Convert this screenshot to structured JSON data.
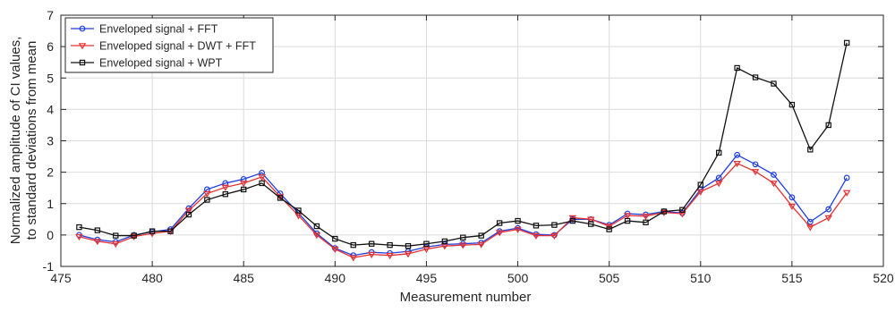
{
  "chart_data": {
    "type": "line",
    "title": "",
    "xlabel": "Measurement number",
    "ylabel_lines": [
      "Normalized amplitude of CI values,",
      "to standard deviations from mean"
    ],
    "xlim": [
      475,
      520
    ],
    "ylim": [
      -1,
      7
    ],
    "xticks": [
      475,
      480,
      485,
      490,
      495,
      500,
      505,
      510,
      515,
      520
    ],
    "yticks": [
      -1,
      0,
      1,
      2,
      3,
      4,
      5,
      6,
      7
    ],
    "grid": true,
    "legend_position": "top-left",
    "x": [
      476,
      477,
      478,
      479,
      480,
      481,
      482,
      483,
      484,
      485,
      486,
      487,
      488,
      489,
      490,
      491,
      492,
      493,
      494,
      495,
      496,
      497,
      498,
      499,
      500,
      501,
      502,
      503,
      504,
      505,
      506,
      507,
      508,
      509,
      510,
      511,
      512,
      513,
      514,
      515,
      516,
      517,
      518
    ],
    "series": [
      {
        "name": "Enveloped signal + FFT",
        "color": "#1f3fe0",
        "marker": "circle",
        "values": [
          0.0,
          -0.15,
          -0.22,
          0.0,
          0.1,
          0.18,
          0.85,
          1.45,
          1.65,
          1.78,
          1.98,
          1.32,
          0.7,
          0.05,
          -0.42,
          -0.65,
          -0.55,
          -0.58,
          -0.52,
          -0.38,
          -0.3,
          -0.28,
          -0.25,
          0.12,
          0.22,
          0.02,
          0.0,
          0.5,
          0.5,
          0.32,
          0.68,
          0.65,
          0.75,
          0.7,
          1.45,
          1.82,
          2.55,
          2.25,
          1.92,
          1.2,
          0.42,
          0.82,
          1.82
        ]
      },
      {
        "name": "Enveloped signal + DWT + FFT",
        "color": "#e63232",
        "marker": "triangle-down",
        "values": [
          -0.05,
          -0.2,
          -0.28,
          -0.05,
          0.05,
          0.12,
          0.78,
          1.32,
          1.52,
          1.65,
          1.85,
          1.22,
          0.62,
          0.0,
          -0.45,
          -0.72,
          -0.62,
          -0.65,
          -0.6,
          -0.45,
          -0.35,
          -0.32,
          -0.3,
          0.08,
          0.18,
          -0.02,
          -0.02,
          0.55,
          0.5,
          0.28,
          0.62,
          0.6,
          0.72,
          0.68,
          1.38,
          1.65,
          2.28,
          2.02,
          1.65,
          0.92,
          0.25,
          0.55,
          1.35
        ]
      },
      {
        "name": "Enveloped signal + WPT",
        "color": "#111111",
        "marker": "square",
        "values": [
          0.25,
          0.15,
          -0.02,
          -0.02,
          0.12,
          0.12,
          0.65,
          1.12,
          1.3,
          1.45,
          1.65,
          1.18,
          0.78,
          0.28,
          -0.12,
          -0.32,
          -0.28,
          -0.32,
          -0.35,
          -0.28,
          -0.2,
          -0.08,
          -0.02,
          0.38,
          0.45,
          0.3,
          0.32,
          0.45,
          0.35,
          0.18,
          0.45,
          0.4,
          0.75,
          0.8,
          1.6,
          2.62,
          5.32,
          5.02,
          4.82,
          4.15,
          2.72,
          3.5,
          6.12
        ]
      }
    ]
  }
}
